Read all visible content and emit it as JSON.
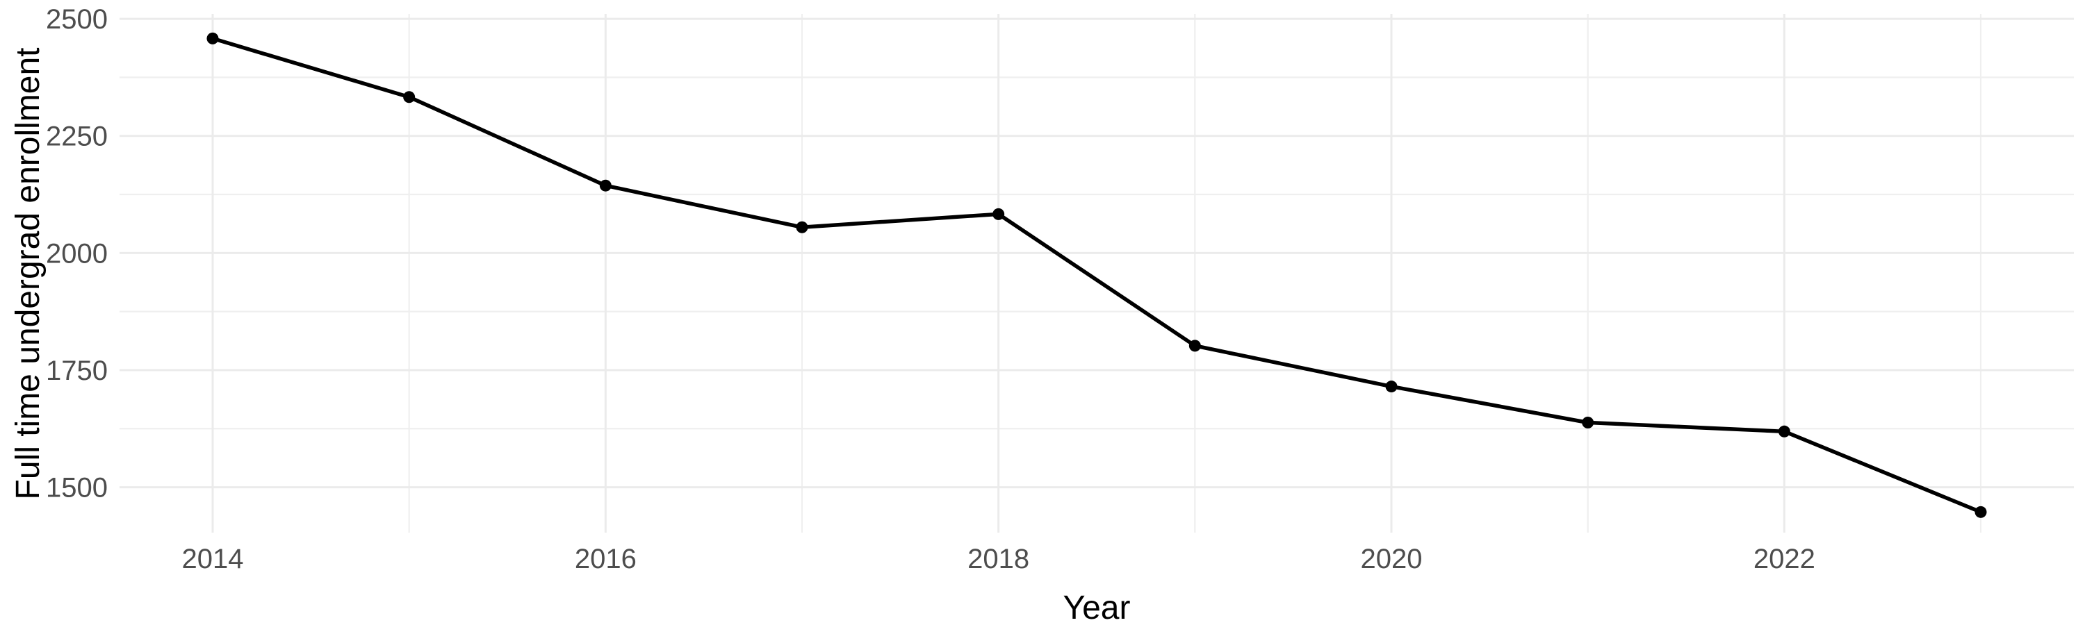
{
  "chart_data": {
    "type": "line",
    "title": "",
    "xlabel": "Year",
    "ylabel": "Full time undergrad enrollment",
    "x": [
      2014,
      2015,
      2016,
      2017,
      2018,
      2019,
      2020,
      2021,
      2022,
      2023
    ],
    "series": [
      {
        "name": "Full time undergrad enrollment",
        "values": [
          2458,
          2333,
          2144,
          2055,
          2083,
          1802,
          1715,
          1638,
          1619,
          1447
        ]
      }
    ],
    "x_major_ticks": [
      2014,
      2016,
      2018,
      2020,
      2022
    ],
    "x_tick_labels": [
      "2014",
      "2016",
      "2018",
      "2020",
      "2022"
    ],
    "x_minor_ticks": [
      2015,
      2017,
      2019,
      2021,
      2023
    ],
    "y_major_ticks": [
      2500,
      2250,
      2000,
      1750,
      1500
    ],
    "y_tick_labels": [
      "2500",
      "2250",
      "2000",
      "1750",
      "1500"
    ],
    "y_minor_ticks": [
      2375,
      2125,
      1875,
      1625
    ],
    "xlim": [
      2013.526,
      2023.474
    ],
    "ylim": [
      1403,
      2510.5
    ],
    "grid": true,
    "legend": false,
    "marker": "point",
    "colors": {
      "line": "#000000",
      "point": "#000000",
      "grid_major": "#ebebeb",
      "grid_minor": "#efefef",
      "tick_label": "#4d4d4d",
      "axis_title": "#000000",
      "background": "#ffffff"
    }
  }
}
